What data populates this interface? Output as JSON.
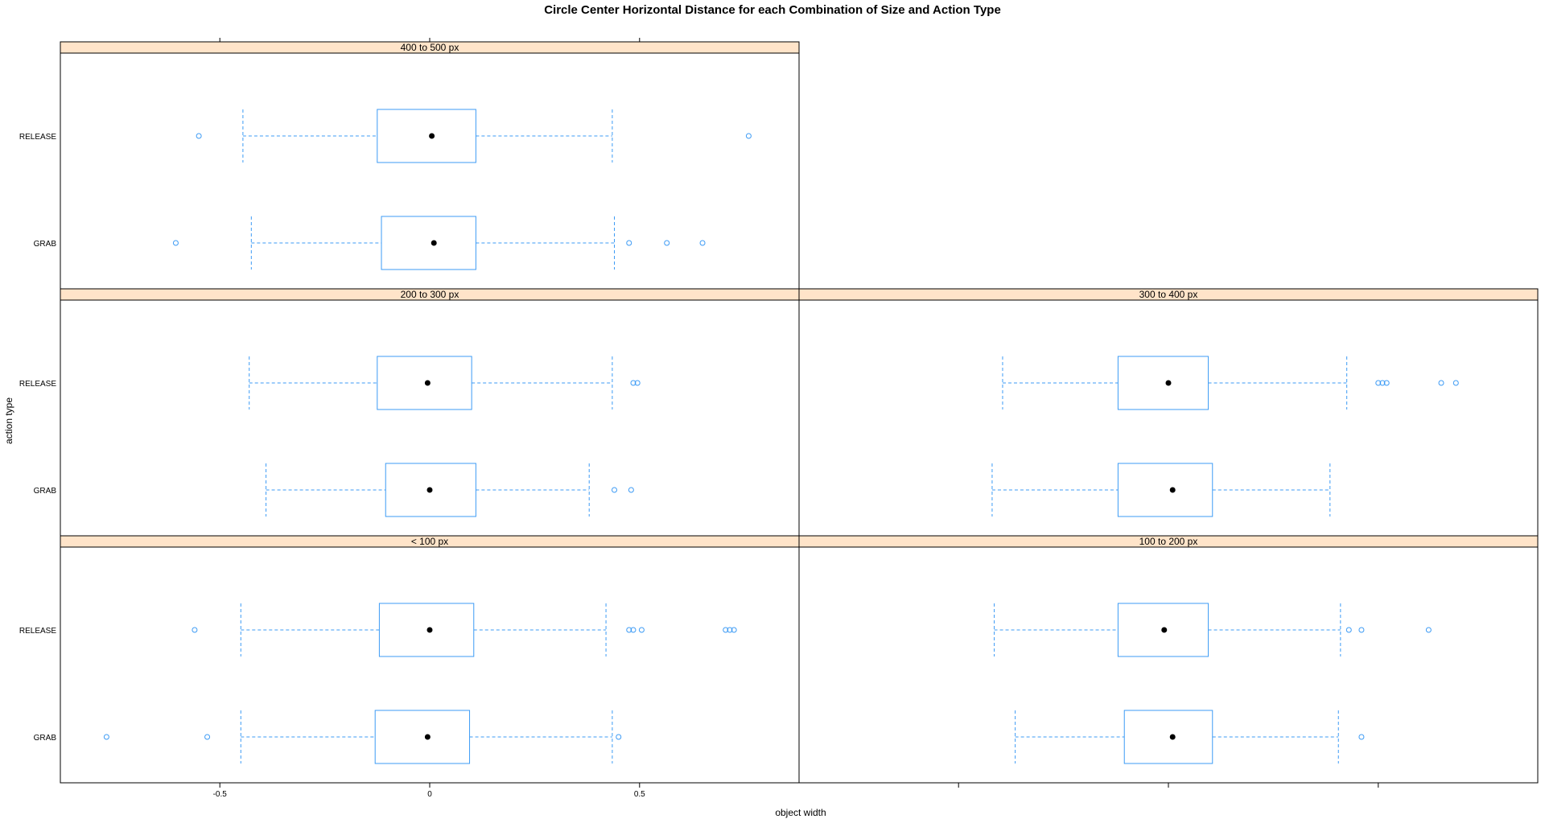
{
  "chart_data": {
    "type": "boxplot",
    "title": "Circle Center Horizontal Distance for each Combination of Size and Action Type",
    "xlabel": "object width",
    "ylabel": "action type",
    "xlim": [
      -0.88,
      0.88
    ],
    "x_ticks": [
      -0.5,
      0,
      0.5
    ],
    "x_tick_labels": [
      "-0.5",
      "0",
      "0.5"
    ],
    "categories": [
      "GRAB",
      "RELEASE"
    ],
    "colors": {
      "box": "#3d9bf5",
      "median_dot": "#000000",
      "strip_fill": "#ffe4c9",
      "frame": "#000000"
    },
    "panels": [
      {
        "strip": "< 100 px",
        "row": 0,
        "col": 0,
        "boxes": [
          {
            "category": "GRAB",
            "whisker_low": -0.45,
            "q1": -0.13,
            "median": -0.005,
            "q3": 0.095,
            "whisker_high": 0.435,
            "outliers": [
              -0.77,
              -0.53,
              0.45
            ]
          },
          {
            "category": "RELEASE",
            "whisker_low": -0.45,
            "q1": -0.12,
            "median": 0.0,
            "q3": 0.105,
            "whisker_high": 0.42,
            "outliers": [
              -0.56,
              0.475,
              0.485,
              0.505,
              0.705,
              0.715,
              0.725
            ]
          }
        ]
      },
      {
        "strip": "100 to 200 px",
        "row": 0,
        "col": 1,
        "boxes": [
          {
            "category": "GRAB",
            "whisker_low": -0.365,
            "q1": -0.105,
            "median": 0.01,
            "q3": 0.105,
            "whisker_high": 0.405,
            "outliers": [
              0.46
            ]
          },
          {
            "category": "RELEASE",
            "whisker_low": -0.415,
            "q1": -0.12,
            "median": -0.01,
            "q3": 0.095,
            "whisker_high": 0.41,
            "outliers": [
              0.43,
              0.46,
              0.62
            ]
          }
        ]
      },
      {
        "strip": "200 to 300 px",
        "row": 1,
        "col": 0,
        "boxes": [
          {
            "category": "GRAB",
            "whisker_low": -0.39,
            "q1": -0.105,
            "median": 0.0,
            "q3": 0.11,
            "whisker_high": 0.38,
            "outliers": [
              0.44,
              0.48
            ]
          },
          {
            "category": "RELEASE",
            "whisker_low": -0.43,
            "q1": -0.125,
            "median": -0.005,
            "q3": 0.1,
            "whisker_high": 0.435,
            "outliers": [
              0.485,
              0.495
            ]
          }
        ]
      },
      {
        "strip": "300 to 400 px",
        "row": 1,
        "col": 1,
        "boxes": [
          {
            "category": "GRAB",
            "whisker_low": -0.42,
            "q1": -0.12,
            "median": 0.01,
            "q3": 0.105,
            "whisker_high": 0.385,
            "outliers": []
          },
          {
            "category": "RELEASE",
            "whisker_low": -0.395,
            "q1": -0.12,
            "median": 0.0,
            "q3": 0.095,
            "whisker_high": 0.425,
            "outliers": [
              0.5,
              0.51,
              0.52,
              0.65,
              0.685
            ]
          }
        ]
      },
      {
        "strip": "400 to 500 px",
        "row": 2,
        "col": 0,
        "boxes": [
          {
            "category": "GRAB",
            "whisker_low": -0.425,
            "q1": -0.115,
            "median": 0.01,
            "q3": 0.11,
            "whisker_high": 0.44,
            "outliers": [
              -0.605,
              0.475,
              0.565,
              0.65
            ]
          },
          {
            "category": "RELEASE",
            "whisker_low": -0.445,
            "q1": -0.125,
            "median": 0.005,
            "q3": 0.11,
            "whisker_high": 0.435,
            "outliers": [
              -0.55,
              0.76
            ]
          }
        ]
      }
    ],
    "grid": false,
    "legend": "none"
  }
}
